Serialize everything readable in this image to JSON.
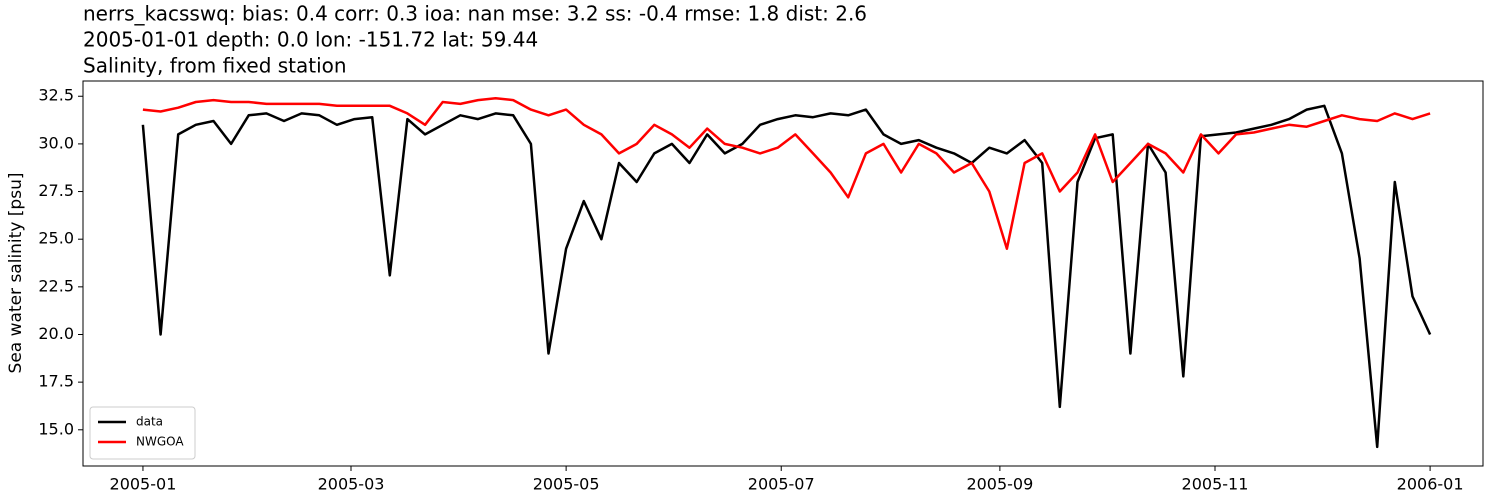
{
  "chart_data": {
    "type": "line",
    "title_lines": [
      "nerrs_kacsswq: bias: 0.4  corr: 0.3  ioa: nan  mse: 3.2  ss: -0.4  rmse: 1.8  dist: 2.6",
      "2005-01-01 depth: 0.0 lon: -151.72 lat: 59.44",
      "Salinity, from fixed station"
    ],
    "ylabel": "Sea water salinity [psu]",
    "x": [
      0,
      5,
      10,
      15,
      20,
      25,
      30,
      35,
      40,
      45,
      50,
      55,
      60,
      65,
      70,
      75,
      80,
      85,
      90,
      95,
      100,
      105,
      110,
      115,
      120,
      125,
      130,
      135,
      140,
      145,
      150,
      155,
      160,
      165,
      170,
      175,
      180,
      185,
      190,
      195,
      200,
      205,
      210,
      215,
      220,
      225,
      230,
      235,
      240,
      245,
      250,
      255,
      260,
      265,
      270,
      275,
      280,
      285,
      290,
      295,
      300,
      305,
      310,
      315,
      320,
      325,
      330,
      335,
      340,
      345,
      350,
      355,
      360,
      365
    ],
    "series": [
      {
        "name": "data",
        "color": "#000000",
        "values": [
          31.0,
          20.0,
          30.5,
          31.0,
          31.2,
          30.0,
          31.5,
          31.6,
          31.2,
          31.6,
          31.5,
          31.0,
          31.3,
          31.4,
          23.1,
          31.3,
          30.5,
          31.0,
          31.5,
          31.3,
          31.6,
          31.5,
          30.0,
          19.0,
          24.5,
          27.0,
          25.0,
          29.0,
          28.0,
          29.5,
          30.0,
          29.0,
          30.5,
          29.5,
          30.0,
          31.0,
          31.3,
          31.5,
          31.4,
          31.6,
          31.5,
          31.8,
          30.5,
          30.0,
          30.2,
          29.8,
          29.5,
          29.0,
          29.8,
          29.5,
          30.2,
          29.0,
          16.2,
          28.0,
          30.3,
          30.5,
          19.0,
          30.0,
          28.5,
          17.8,
          30.4,
          30.5,
          30.6,
          30.8,
          31.0,
          31.3,
          31.8,
          32.0,
          29.5,
          24.0,
          14.1,
          28.0,
          22.0,
          20.0
        ]
      },
      {
        "name": "NWGOA",
        "color": "#ff0000",
        "values": [
          31.8,
          31.7,
          31.9,
          32.2,
          32.3,
          32.2,
          32.2,
          32.1,
          32.1,
          32.1,
          32.1,
          32.0,
          32.0,
          32.0,
          32.0,
          31.6,
          31.0,
          32.2,
          32.1,
          32.3,
          32.4,
          32.3,
          31.8,
          31.5,
          31.8,
          31.0,
          30.5,
          29.5,
          30.0,
          31.0,
          30.5,
          29.8,
          30.8,
          30.0,
          29.8,
          29.5,
          29.8,
          30.5,
          29.5,
          28.5,
          27.2,
          29.5,
          30.0,
          28.5,
          30.0,
          29.5,
          28.5,
          29.0,
          27.5,
          24.5,
          29.0,
          29.5,
          27.5,
          28.5,
          30.5,
          28.0,
          29.0,
          30.0,
          29.5,
          28.5,
          30.5,
          29.5,
          30.5,
          30.6,
          30.8,
          31.0,
          30.9,
          31.2,
          31.5,
          31.3,
          31.2,
          31.6,
          31.3,
          31.6
        ]
      }
    ],
    "xlim": [
      -17,
      380
    ],
    "xticks": [
      {
        "value": 0,
        "label": "2005-01"
      },
      {
        "value": 59,
        "label": "2005-03"
      },
      {
        "value": 120,
        "label": "2005-05"
      },
      {
        "value": 181,
        "label": "2005-07"
      },
      {
        "value": 243,
        "label": "2005-09"
      },
      {
        "value": 304,
        "label": "2005-11"
      },
      {
        "value": 365,
        "label": "2006-01"
      }
    ],
    "ylim": [
      13.1,
      33.3
    ],
    "yticks": [
      {
        "value": 15,
        "label": "15.0"
      },
      17.5,
      {
        "value": 20,
        "label": "20.0"
      },
      22.5,
      {
        "value": 25,
        "label": "25.0"
      },
      27.5,
      {
        "value": 30,
        "label": "30.0"
      },
      32.5
    ],
    "legend": "lower left"
  }
}
